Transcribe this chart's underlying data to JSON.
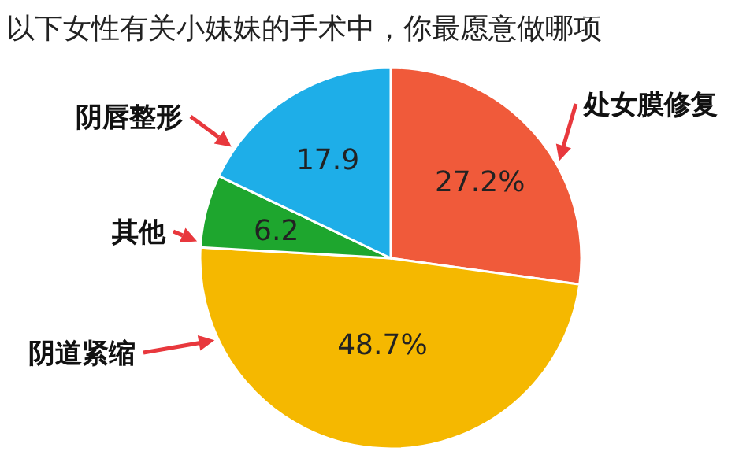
{
  "chart_data": {
    "type": "pie",
    "title": "以下女性有关小妹妹的手术中，你最愿意做哪项",
    "categories": [
      "处女膜修复",
      "阴道紧缩",
      "其他",
      "阴唇整形"
    ],
    "values": [
      27.2,
      48.7,
      6.2,
      17.9
    ],
    "colors": [
      "#f05a3a",
      "#f5b800",
      "#1ea62e",
      "#1eaee8"
    ],
    "value_labels": [
      "27.2%",
      "48.7%",
      "6.2",
      "17.9"
    ]
  }
}
